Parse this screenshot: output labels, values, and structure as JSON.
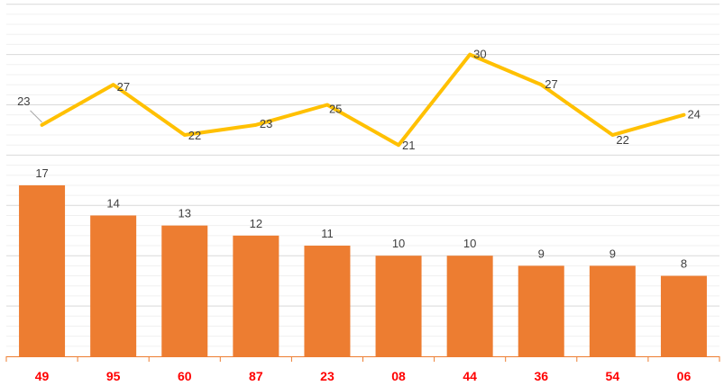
{
  "chart_data": {
    "type": "bar",
    "categories": [
      "49",
      "95",
      "60",
      "87",
      "23",
      "08",
      "44",
      "36",
      "54",
      "06"
    ],
    "series": [
      {
        "type": "bar",
        "values": [
          17,
          14,
          13,
          12,
          11,
          10,
          10,
          9,
          9,
          8
        ],
        "color": "#ed7d31"
      },
      {
        "type": "line",
        "values": [
          23,
          27,
          22,
          23,
          25,
          21,
          30,
          27,
          22,
          24
        ],
        "color": "#ffc000"
      }
    ],
    "title": "",
    "xlabel": "",
    "ylabel": "",
    "grid": true,
    "legend": "none",
    "colors": {
      "xtick": "#ff0000",
      "axis": "#ed7d31",
      "label": "#404040"
    }
  }
}
